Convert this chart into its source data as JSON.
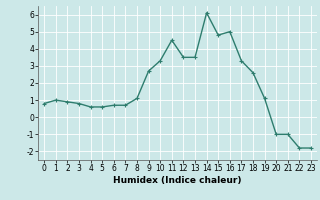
{
  "x": [
    0,
    1,
    2,
    3,
    4,
    5,
    6,
    7,
    8,
    9,
    10,
    11,
    12,
    13,
    14,
    15,
    16,
    17,
    18,
    19,
    20,
    21,
    22,
    23
  ],
  "y": [
    0.8,
    1.0,
    0.9,
    0.8,
    0.6,
    0.6,
    0.7,
    0.7,
    1.1,
    2.7,
    3.3,
    4.5,
    3.5,
    3.5,
    6.1,
    4.8,
    5.0,
    3.3,
    2.6,
    1.1,
    -1.0,
    -1.0,
    -1.8,
    -1.8
  ],
  "line_color": "#2e7d6e",
  "marker": "+",
  "marker_size": 3,
  "linewidth": 1.0,
  "xlabel": "Humidex (Indice chaleur)",
  "xlim": [
    -0.5,
    23.5
  ],
  "ylim": [
    -2.5,
    6.5
  ],
  "yticks": [
    -2,
    -1,
    0,
    1,
    2,
    3,
    4,
    5,
    6
  ],
  "xticks": [
    0,
    1,
    2,
    3,
    4,
    5,
    6,
    7,
    8,
    9,
    10,
    11,
    12,
    13,
    14,
    15,
    16,
    17,
    18,
    19,
    20,
    21,
    22,
    23
  ],
  "background_color": "#cce8e8",
  "grid_color": "#ffffff",
  "label_fontsize": 6.5,
  "tick_fontsize": 5.5
}
